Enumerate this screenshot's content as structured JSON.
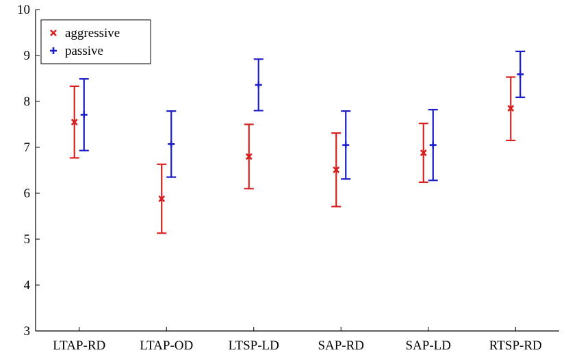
{
  "chart_data": {
    "type": "errorbar",
    "categories": [
      "LTAP-RD",
      "LTAP-OD",
      "LTSP-LD",
      "SAP-RD",
      "SAP-LD",
      "RTSP-RD"
    ],
    "ylim": [
      3,
      10
    ],
    "yticks": [
      3,
      4,
      5,
      6,
      7,
      8,
      9,
      10
    ],
    "legend_position": "top-left",
    "grid": false,
    "series": [
      {
        "name": "aggressive",
        "marker": "x",
        "color": "#d62020",
        "mean": [
          7.55,
          5.88,
          6.8,
          6.51,
          6.88,
          7.85
        ],
        "lower": [
          6.77,
          5.13,
          6.1,
          5.71,
          6.24,
          7.15
        ],
        "upper": [
          8.33,
          6.63,
          7.5,
          7.31,
          7.52,
          8.53
        ]
      },
      {
        "name": "passive",
        "marker": "+",
        "color": "#1c1cc8",
        "mean": [
          7.71,
          7.07,
          8.36,
          7.05,
          7.05,
          8.59
        ],
        "lower": [
          6.93,
          6.35,
          7.8,
          6.31,
          6.28,
          8.09
        ],
        "upper": [
          8.49,
          7.79,
          8.92,
          7.79,
          7.82,
          9.09
        ]
      }
    ]
  }
}
